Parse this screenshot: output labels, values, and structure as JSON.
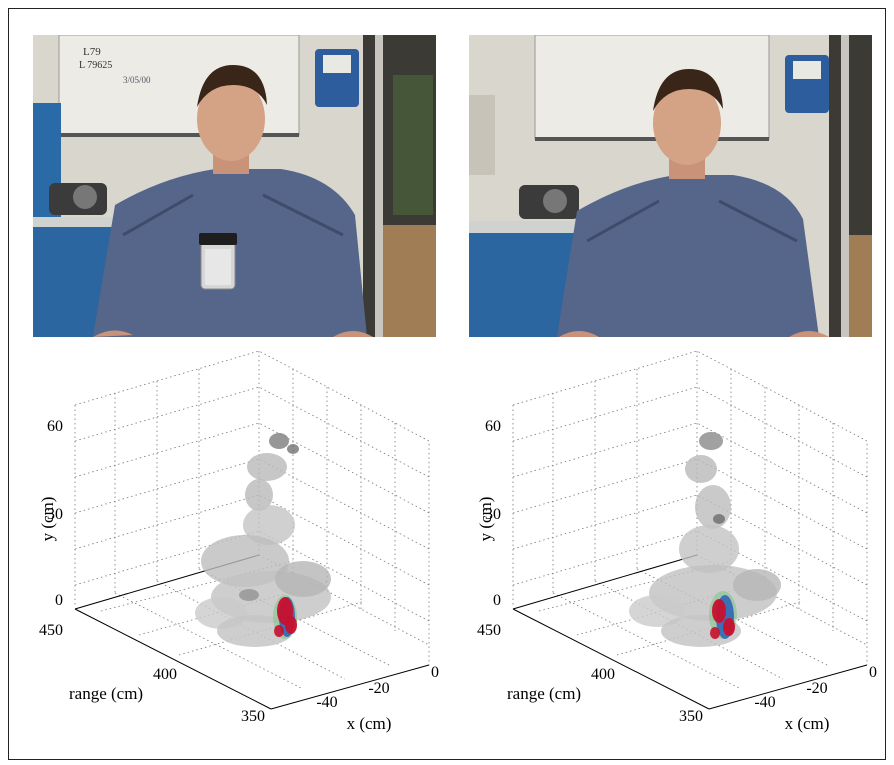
{
  "figure": {
    "photos": [
      {
        "id": "left",
        "subject": "man-with-concealed-jar",
        "has_jar": true
      },
      {
        "id": "right",
        "subject": "man-without-jar",
        "has_jar": false
      }
    ],
    "whiteboard_scribble": [
      "L79",
      "L 79625",
      "3/05/00"
    ],
    "plots": [
      {
        "id": "left",
        "y_axis": {
          "label": "y (cm)",
          "ticks": [
            "60",
            "30",
            "0"
          ]
        },
        "range_axis": {
          "label": "range (cm)",
          "ticks": [
            "450",
            "400",
            "350"
          ]
        },
        "x_axis": {
          "label": "x (cm)",
          "ticks": [
            "-40",
            "-20",
            "0"
          ]
        }
      },
      {
        "id": "right",
        "y_axis": {
          "label": "y (cm)",
          "ticks": [
            "60",
            "30",
            "0"
          ]
        },
        "range_axis": {
          "label": "range (cm)",
          "ticks": [
            "450",
            "400",
            "350"
          ]
        },
        "x_axis": {
          "label": "x (cm)",
          "ticks": [
            "-40",
            "-20",
            "0"
          ]
        }
      }
    ],
    "colors": {
      "cloud_gray": "#b9b9b9",
      "hot_red": "#c8102e",
      "cool_blue": "#2b5fb8",
      "edge_green": "#4fbf60"
    }
  }
}
